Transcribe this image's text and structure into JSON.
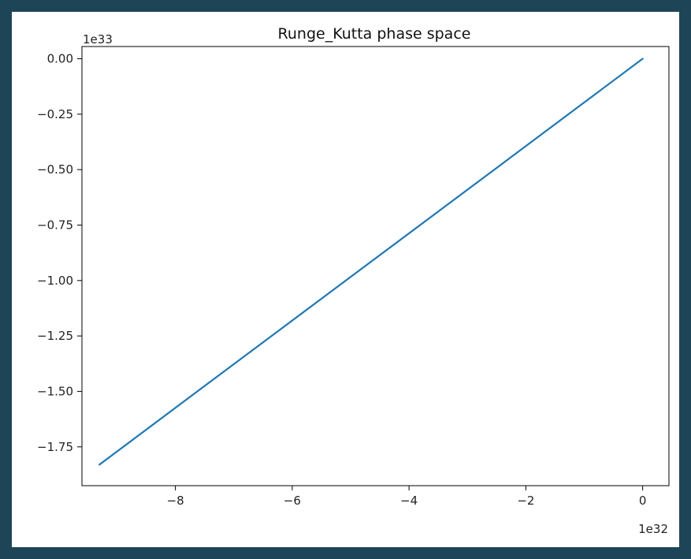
{
  "chart_data": {
    "type": "line",
    "title": "Runge_Kutta phase space",
    "xlabel": "",
    "ylabel": "",
    "x_multiplier": "1e32",
    "y_multiplier": "1e33",
    "xlim": [
      -9.6,
      0.45
    ],
    "ylim": [
      -1.925,
      0.055
    ],
    "x_ticks": [
      -8,
      -6,
      -4,
      -2,
      0
    ],
    "x_tick_labels": [
      "−8",
      "−6",
      "−4",
      "−2",
      "0"
    ],
    "y_ticks": [
      0.0,
      -0.25,
      -0.5,
      -0.75,
      -1.0,
      -1.25,
      -1.5,
      -1.75
    ],
    "y_tick_labels": [
      "0.00",
      "−0.25",
      "−0.50",
      "−0.75",
      "−1.00",
      "−1.25",
      "−1.50",
      "−1.75"
    ],
    "grid": false,
    "series": [
      {
        "color": "#1f77b4",
        "x": [
          -9.3,
          -7.0,
          -4.65,
          -2.3,
          0.0
        ],
        "y": [
          -1.83,
          -1.377,
          -0.915,
          -0.453,
          0.0
        ]
      }
    ]
  }
}
